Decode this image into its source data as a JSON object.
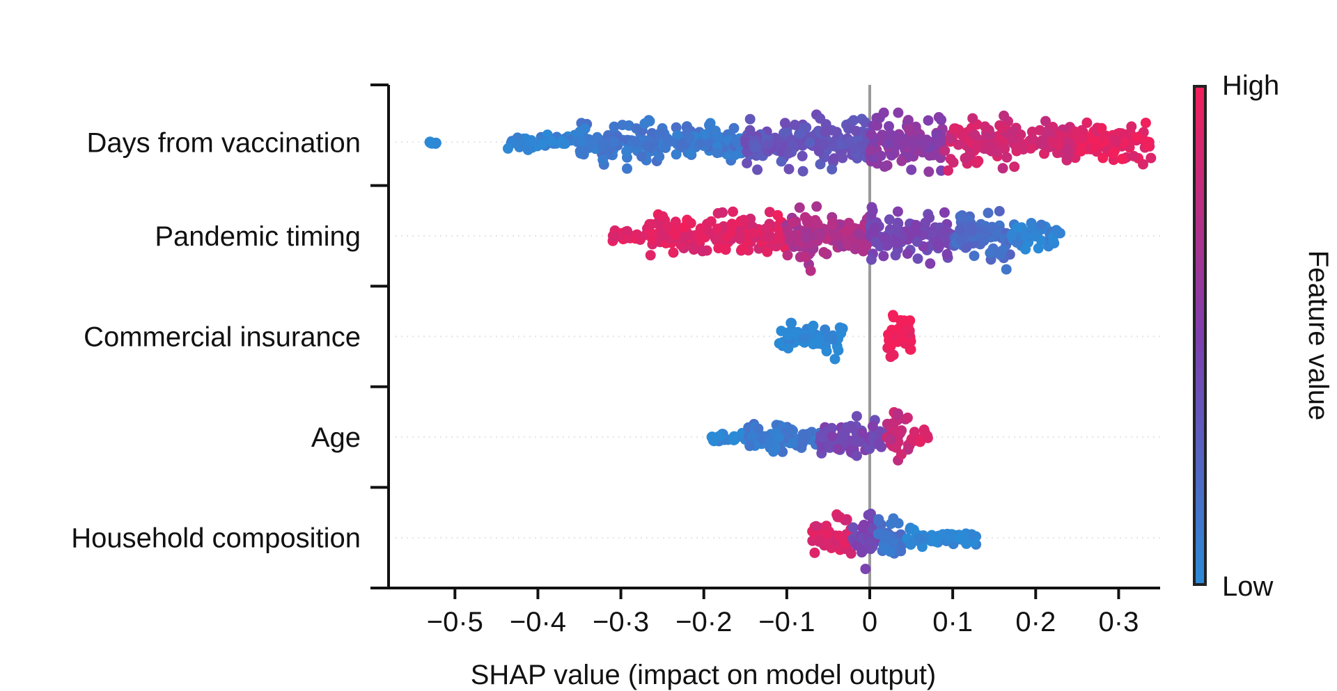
{
  "chart_data": {
    "type": "scatter",
    "subtype": "beeswarm",
    "title": "",
    "xlabel": "SHAP value (impact on model output)",
    "ylabel": "",
    "xlim": [
      -0.58,
      0.35
    ],
    "x_ticks": [
      -0.5,
      -0.4,
      -0.3,
      -0.2,
      -0.1,
      0,
      0.1,
      0.2,
      0.3
    ],
    "x_tick_labels": [
      "−0·5",
      "−0·4",
      "−0·3",
      "−0·2",
      "−0·1",
      "0",
      "0·1",
      "0·2",
      "0·3"
    ],
    "colorbar": {
      "label": "Feature value",
      "high_label": "High",
      "low_label": "Low",
      "low_color": "#2b8ad6",
      "mid_color": "#7e3fae",
      "high_color": "#f21f5a"
    },
    "features": [
      {
        "name": "Days from vaccination",
        "shap_range": [
          -0.53,
          0.34
        ],
        "segments": [
          {
            "from": -0.53,
            "to": -0.52,
            "density": 0.15,
            "value": 0.0
          },
          {
            "from": -0.44,
            "to": -0.35,
            "density": 0.3,
            "value": 0.05
          },
          {
            "from": -0.35,
            "to": -0.15,
            "density": 0.8,
            "value": 0.12
          },
          {
            "from": -0.15,
            "to": 0.0,
            "density": 0.95,
            "value": 0.35
          },
          {
            "from": 0.0,
            "to": 0.09,
            "density": 1.0,
            "value": 0.55
          },
          {
            "from": 0.09,
            "to": 0.25,
            "density": 0.85,
            "value": 0.85
          },
          {
            "from": 0.25,
            "to": 0.34,
            "density": 0.7,
            "value": 0.95
          }
        ]
      },
      {
        "name": "Pandemic timing",
        "shap_range": [
          -0.31,
          0.23
        ],
        "segments": [
          {
            "from": -0.31,
            "to": -0.27,
            "density": 0.25,
            "value": 0.95
          },
          {
            "from": -0.27,
            "to": -0.1,
            "density": 0.8,
            "value": 0.92
          },
          {
            "from": -0.1,
            "to": 0.0,
            "density": 0.95,
            "value": 0.7
          },
          {
            "from": 0.0,
            "to": 0.1,
            "density": 0.9,
            "value": 0.45
          },
          {
            "from": 0.1,
            "to": 0.17,
            "density": 1.0,
            "value": 0.2
          },
          {
            "from": 0.17,
            "to": 0.23,
            "density": 0.6,
            "value": 0.05
          }
        ]
      },
      {
        "name": "Commercial insurance",
        "shap_range": [
          -0.11,
          0.05
        ],
        "segments": [
          {
            "from": -0.11,
            "to": -0.03,
            "density": 0.6,
            "value": 0.0
          },
          {
            "from": 0.02,
            "to": 0.05,
            "density": 1.0,
            "value": 1.0
          }
        ]
      },
      {
        "name": "Age",
        "shap_range": [
          -0.19,
          0.07
        ],
        "segments": [
          {
            "from": -0.19,
            "to": -0.15,
            "density": 0.2,
            "value": 0.0
          },
          {
            "from": -0.15,
            "to": -0.06,
            "density": 0.55,
            "value": 0.1
          },
          {
            "from": -0.06,
            "to": 0.02,
            "density": 0.75,
            "value": 0.45
          },
          {
            "from": 0.02,
            "to": 0.05,
            "density": 1.0,
            "value": 0.8
          },
          {
            "from": 0.05,
            "to": 0.07,
            "density": 0.3,
            "value": 0.95
          }
        ]
      },
      {
        "name": "Household composition",
        "shap_range": [
          -0.07,
          0.13
        ],
        "segments": [
          {
            "from": -0.07,
            "to": -0.02,
            "density": 0.75,
            "value": 0.9
          },
          {
            "from": -0.02,
            "to": 0.01,
            "density": 1.0,
            "value": 0.45
          },
          {
            "from": 0.01,
            "to": 0.04,
            "density": 0.85,
            "value": 0.15
          },
          {
            "from": 0.04,
            "to": 0.13,
            "density": 0.35,
            "value": 0.0
          }
        ]
      }
    ]
  }
}
